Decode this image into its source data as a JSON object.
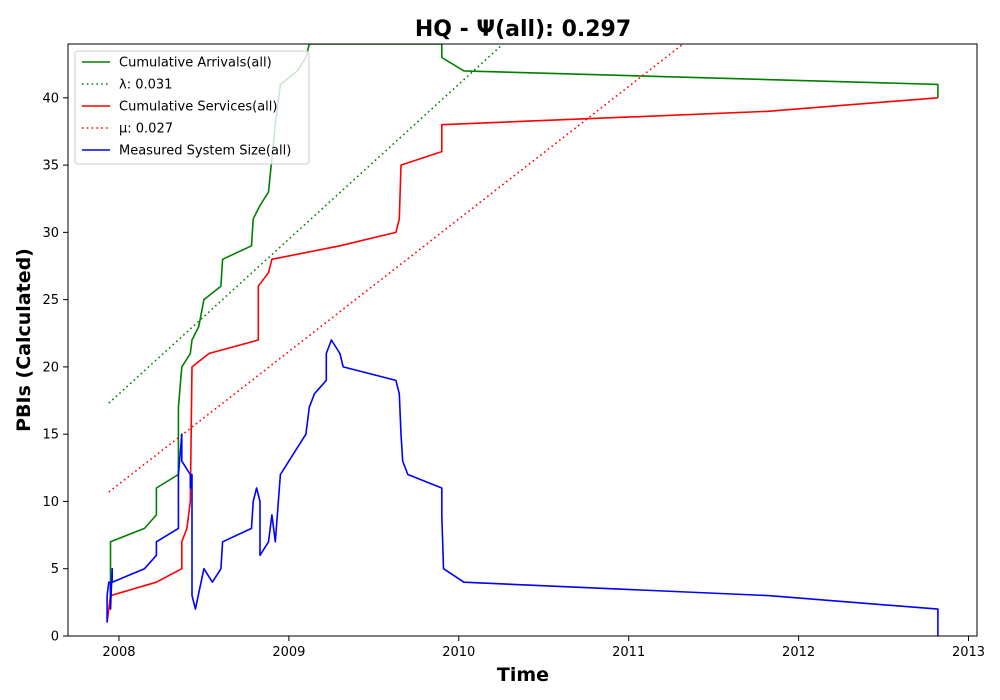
{
  "chart_data": {
    "type": "line",
    "title": "HQ -  Ψ(all): 0.297",
    "xlabel": "Time",
    "ylabel": "PBIs (Calculated)",
    "xlim": [
      2007.7,
      2013.05
    ],
    "ylim": [
      0,
      44
    ],
    "x_ticks": [
      "2008",
      "2009",
      "2010",
      "2011",
      "2012",
      "2013"
    ],
    "y_ticks": [
      "0",
      "5",
      "10",
      "15",
      "20",
      "25",
      "30",
      "35",
      "40"
    ],
    "grid": false,
    "legend_position": "top-left",
    "series": [
      {
        "name": "Cumulative Arrivals(all)",
        "style": "solid",
        "color": "#008000",
        "points": [
          [
            2007.95,
            2
          ],
          [
            2007.95,
            7
          ],
          [
            2008.15,
            8
          ],
          [
            2008.22,
            9
          ],
          [
            2008.22,
            11
          ],
          [
            2008.35,
            12
          ],
          [
            2008.35,
            17
          ],
          [
            2008.37,
            20
          ],
          [
            2008.42,
            21
          ],
          [
            2008.43,
            22
          ],
          [
            2008.47,
            23
          ],
          [
            2008.5,
            25
          ],
          [
            2008.6,
            26
          ],
          [
            2008.61,
            28
          ],
          [
            2008.78,
            29
          ],
          [
            2008.79,
            31
          ],
          [
            2008.83,
            32
          ],
          [
            2008.88,
            33
          ],
          [
            2008.92,
            38
          ],
          [
            2008.95,
            41
          ],
          [
            2009.05,
            42
          ],
          [
            2009.1,
            43
          ],
          [
            2009.12,
            44
          ],
          [
            2009.9,
            44
          ],
          [
            2009.9,
            43
          ],
          [
            2010.03,
            42
          ],
          [
            2012.82,
            41
          ],
          [
            2012.82,
            40
          ]
        ]
      },
      {
        "name": "λ: 0.031",
        "style": "dotted",
        "color": "#008000",
        "points": [
          [
            2007.94,
            17.3
          ],
          [
            2010.26,
            44
          ]
        ]
      },
      {
        "name": "Cumulative Services(all)",
        "style": "solid",
        "color": "#ff0000",
        "points": [
          [
            2007.93,
            1
          ],
          [
            2007.95,
            3
          ],
          [
            2008.22,
            4
          ],
          [
            2008.37,
            5
          ],
          [
            2008.37,
            7
          ],
          [
            2008.4,
            8
          ],
          [
            2008.42,
            10
          ],
          [
            2008.43,
            20
          ],
          [
            2008.53,
            21
          ],
          [
            2008.82,
            22
          ],
          [
            2008.82,
            26
          ],
          [
            2008.88,
            27
          ],
          [
            2008.9,
            28
          ],
          [
            2009.3,
            29
          ],
          [
            2009.63,
            30
          ],
          [
            2009.65,
            31
          ],
          [
            2009.66,
            35
          ],
          [
            2009.9,
            36
          ],
          [
            2009.9,
            38
          ],
          [
            2011.82,
            39
          ],
          [
            2012.82,
            40
          ]
        ]
      },
      {
        "name": "μ: 0.027",
        "style": "dotted",
        "color": "#ff0000",
        "points": [
          [
            2007.94,
            10.7
          ],
          [
            2011.32,
            44
          ]
        ]
      },
      {
        "name": "Measured System Size(all)",
        "style": "solid",
        "color": "#0000ff",
        "points": [
          [
            2007.93,
            1
          ],
          [
            2007.93,
            3
          ],
          [
            2007.94,
            4
          ],
          [
            2007.95,
            4
          ],
          [
            2007.95,
            2
          ],
          [
            2007.96,
            5
          ],
          [
            2007.96,
            4
          ],
          [
            2008.15,
            5
          ],
          [
            2008.22,
            6
          ],
          [
            2008.22,
            7
          ],
          [
            2008.35,
            8
          ],
          [
            2008.35,
            12
          ],
          [
            2008.37,
            15
          ],
          [
            2008.37,
            13
          ],
          [
            2008.42,
            12
          ],
          [
            2008.42,
            11
          ],
          [
            2008.43,
            12
          ],
          [
            2008.43,
            3
          ],
          [
            2008.45,
            2
          ],
          [
            2008.5,
            5
          ],
          [
            2008.55,
            4
          ],
          [
            2008.6,
            5
          ],
          [
            2008.61,
            7
          ],
          [
            2008.78,
            8
          ],
          [
            2008.79,
            10
          ],
          [
            2008.81,
            11
          ],
          [
            2008.83,
            10
          ],
          [
            2008.83,
            6
          ],
          [
            2008.88,
            7
          ],
          [
            2008.9,
            9
          ],
          [
            2008.92,
            7
          ],
          [
            2008.95,
            12
          ],
          [
            2009.0,
            13
          ],
          [
            2009.05,
            14
          ],
          [
            2009.1,
            15
          ],
          [
            2009.12,
            17
          ],
          [
            2009.15,
            18
          ],
          [
            2009.22,
            19
          ],
          [
            2009.22,
            21
          ],
          [
            2009.25,
            22
          ],
          [
            2009.3,
            21
          ],
          [
            2009.32,
            20
          ],
          [
            2009.63,
            19
          ],
          [
            2009.65,
            18
          ],
          [
            2009.66,
            15
          ],
          [
            2009.67,
            13
          ],
          [
            2009.7,
            12
          ],
          [
            2009.9,
            11
          ],
          [
            2009.9,
            9
          ],
          [
            2009.91,
            5
          ],
          [
            2010.03,
            4
          ],
          [
            2011.82,
            3
          ],
          [
            2012.82,
            2
          ],
          [
            2012.82,
            0
          ]
        ]
      }
    ]
  }
}
